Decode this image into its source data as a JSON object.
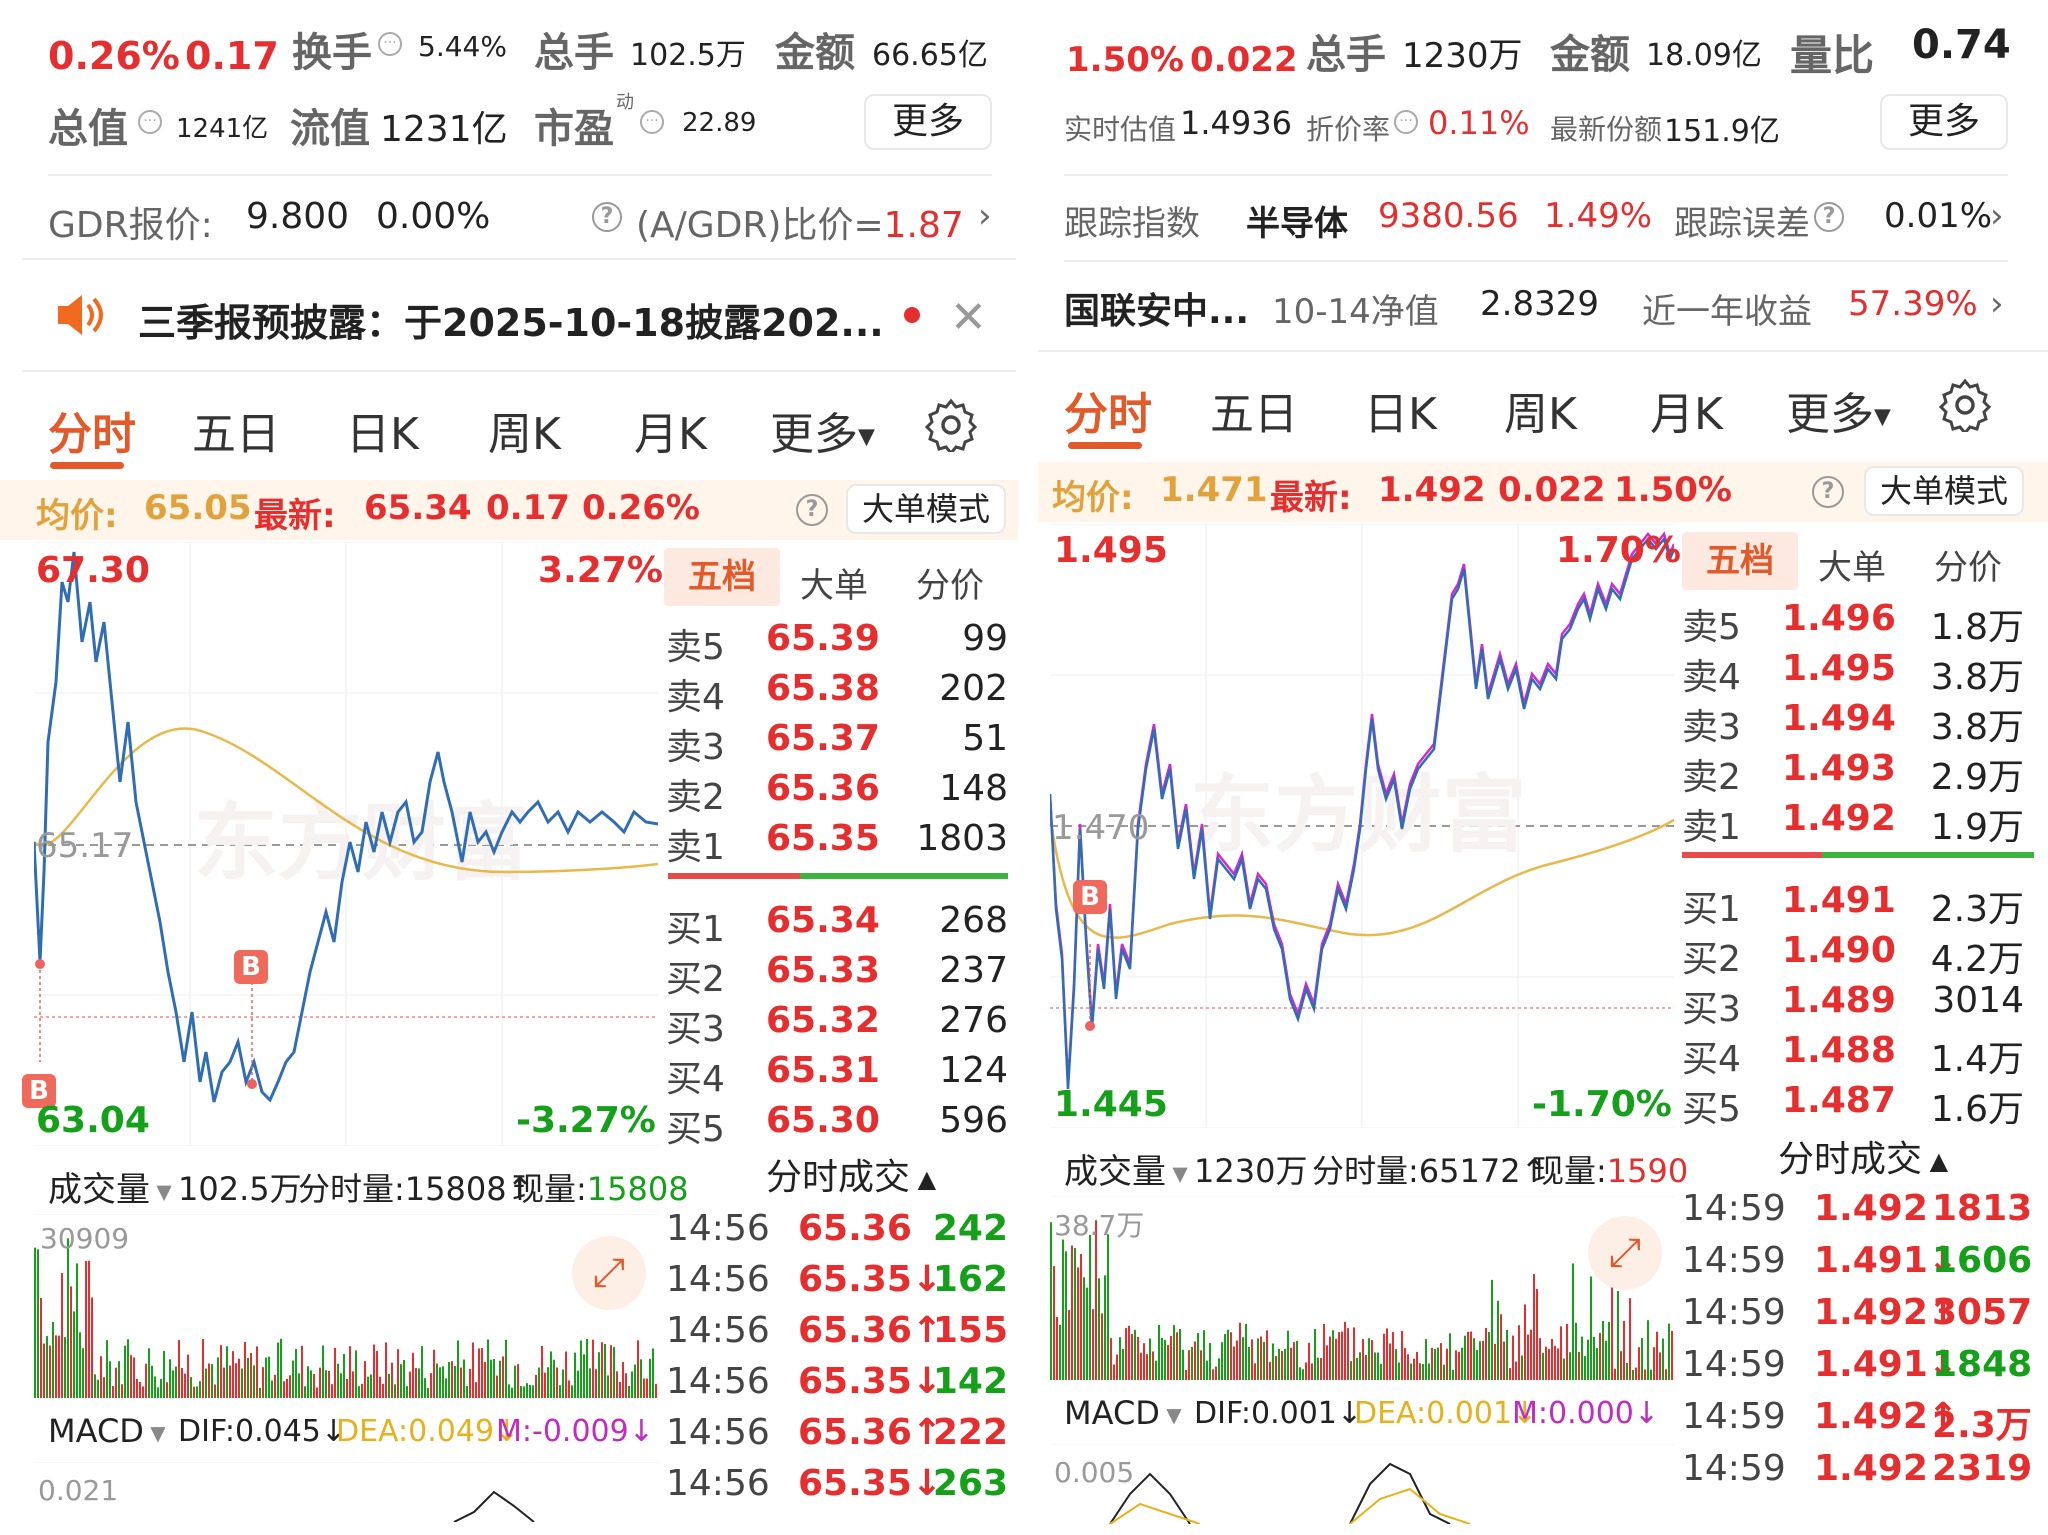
{
  "left": {
    "quote": {
      "pct": "0.26%",
      "chg": "0.17",
      "turnover_label": "换手",
      "turnover": "5.44%",
      "volume_label": "总手",
      "volume": "102.5万",
      "amount_label": "金额",
      "amount": "66.65亿",
      "mktcap_label": "总值",
      "mktcap": "1241亿",
      "float_label": "流值",
      "float": "1231亿",
      "pe_label": "市盈",
      "pe_sup": "动",
      "pe": "22.89",
      "more_button": "更多"
    },
    "gdr": {
      "label": "GDR报价:",
      "price": "9.800",
      "pct": "0.00%",
      "ratio_label": "(A/GDR)比价=",
      "ratio": "1.87"
    },
    "notice": {
      "text": "三季报预披露：于2025-10-18披露202..."
    },
    "tabs": [
      "分时",
      "五日",
      "日K",
      "周K",
      "月K",
      "更多"
    ],
    "avg_line": {
      "avg_label": "均价:",
      "avg": "65.05",
      "latest_label": "最新:",
      "latest": "65.34",
      "chg": "0.17",
      "pct": "0.26%",
      "mode_button": "大单模式"
    },
    "price_chart": {
      "high": "67.30",
      "low": "63.04",
      "mid": "65.17",
      "high_pct": "3.27%",
      "low_pct": "-3.27%",
      "marker": "B"
    },
    "side_tabs": [
      "五档",
      "大单",
      "分价"
    ],
    "asks": [
      {
        "label": "卖5",
        "price": "65.39",
        "vol": "99"
      },
      {
        "label": "卖4",
        "price": "65.38",
        "vol": "202"
      },
      {
        "label": "卖3",
        "price": "65.37",
        "vol": "51"
      },
      {
        "label": "卖2",
        "price": "65.36",
        "vol": "148"
      },
      {
        "label": "卖1",
        "price": "65.35",
        "vol": "1803"
      }
    ],
    "bids": [
      {
        "label": "买1",
        "price": "65.34",
        "vol": "268"
      },
      {
        "label": "买2",
        "price": "65.33",
        "vol": "237"
      },
      {
        "label": "买3",
        "price": "65.32",
        "vol": "276"
      },
      {
        "label": "买4",
        "price": "65.31",
        "vol": "124"
      },
      {
        "label": "买5",
        "price": "65.30",
        "vol": "596"
      }
    ],
    "trades_title": "分时成交",
    "trades": [
      {
        "time": "14:56",
        "price": "65.36",
        "vol": "242",
        "color": "green"
      },
      {
        "time": "14:56",
        "price": "65.35↓",
        "vol": "162",
        "color": "green"
      },
      {
        "time": "14:56",
        "price": "65.36↑",
        "vol": "155",
        "color": "red"
      },
      {
        "time": "14:56",
        "price": "65.35↓",
        "vol": "142",
        "color": "green"
      },
      {
        "time": "14:56",
        "price": "65.36↑",
        "vol": "222",
        "color": "red"
      },
      {
        "time": "14:56",
        "price": "65.35↓",
        "vol": "263",
        "color": "green"
      }
    ],
    "volume_bar": {
      "label": "成交量",
      "total": "102.5万",
      "tick_label": "分时量:",
      "tick": "15808↑",
      "now_label": "现量:",
      "now": "15808"
    },
    "volume_chart": {
      "max": "30909"
    },
    "macd": {
      "label": "MACD",
      "dif": "DIF:0.045↓",
      "dea": "DEA:0.049↓",
      "m": "M:-0.009↓",
      "max": "0.021"
    },
    "watermark": "东方财富"
  },
  "right": {
    "quote": {
      "pct": "1.50%",
      "chg": "0.022",
      "volume_label": "总手",
      "volume": "1230万",
      "amount_label": "金额",
      "amount": "18.09亿",
      "ratio_label": "量比",
      "ratio": "0.74",
      "iopv_label": "实时估值",
      "iopv": "1.4936",
      "discount_label": "折价率",
      "discount": "0.11%",
      "shares_label": "最新份额",
      "shares": "151.9亿",
      "more_button": "更多"
    },
    "tracking": {
      "label": "跟踪指数",
      "index": "半导体",
      "value": "9380.56",
      "pct": "1.49%",
      "err_label": "跟踪误差",
      "err": "0.01%"
    },
    "fund": {
      "name": "国联安中...",
      "nav_label": "10-14净值",
      "nav": "2.8329",
      "ret_label": "近一年收益",
      "ret": "57.39%"
    },
    "tabs": [
      "分时",
      "五日",
      "日K",
      "周K",
      "月K",
      "更多"
    ],
    "avg_line": {
      "avg_label": "均价:",
      "avg": "1.471",
      "latest_label": "最新:",
      "latest": "1.492",
      "chg": "0.022",
      "pct": "1.50%",
      "mode_button": "大单模式"
    },
    "price_chart": {
      "high": "1.495",
      "low": "1.445",
      "mid": "1.470",
      "high_pct": "1.70%",
      "low_pct": "-1.70%",
      "marker": "B"
    },
    "side_tabs": [
      "五档",
      "大单",
      "分价"
    ],
    "asks": [
      {
        "label": "卖5",
        "price": "1.496",
        "vol": "1.8万"
      },
      {
        "label": "卖4",
        "price": "1.495",
        "vol": "3.8万"
      },
      {
        "label": "卖3",
        "price": "1.494",
        "vol": "3.8万"
      },
      {
        "label": "卖2",
        "price": "1.493",
        "vol": "2.9万"
      },
      {
        "label": "卖1",
        "price": "1.492",
        "vol": "1.9万"
      }
    ],
    "bids": [
      {
        "label": "买1",
        "price": "1.491",
        "vol": "2.3万"
      },
      {
        "label": "买2",
        "price": "1.490",
        "vol": "4.2万"
      },
      {
        "label": "买3",
        "price": "1.489",
        "vol": "3014"
      },
      {
        "label": "买4",
        "price": "1.488",
        "vol": "1.4万"
      },
      {
        "label": "买5",
        "price": "1.487",
        "vol": "1.6万"
      }
    ],
    "trades_title": "分时成交",
    "trades": [
      {
        "time": "14:59",
        "price": "1.492",
        "vol": "1813",
        "color": "red"
      },
      {
        "time": "14:59",
        "price": "1.491↓",
        "vol": "1606",
        "color": "green"
      },
      {
        "time": "14:59",
        "price": "1.492↑",
        "vol": "3057",
        "color": "red"
      },
      {
        "time": "14:59",
        "price": "1.491↓",
        "vol": "1848",
        "color": "green"
      },
      {
        "time": "14:59",
        "price": "1.492↑",
        "vol": "2.3万",
        "color": "red"
      },
      {
        "time": "14:59",
        "price": "1.492",
        "vol": "2319",
        "color": "red"
      }
    ],
    "volume_bar": {
      "label": "成交量",
      "total": "1230万",
      "tick_label": "分时量:",
      "tick": "65172↑",
      "now_label": "现量:",
      "now": "1590"
    },
    "volume_chart": {
      "max": "38.7万"
    },
    "macd": {
      "label": "MACD",
      "dif": "DIF:0.001↓",
      "dea": "DEA:0.001↓",
      "m": "M:0.000↓",
      "max": "0.005"
    },
    "watermark": "东方财富"
  },
  "colors": {
    "up": "#e62e2e",
    "down": "#15a01a",
    "accent": "#e25a2a",
    "price_line": "#2f6db5",
    "avg_line": "#e8b84a",
    "right_price_line2": "#d02bd0"
  }
}
